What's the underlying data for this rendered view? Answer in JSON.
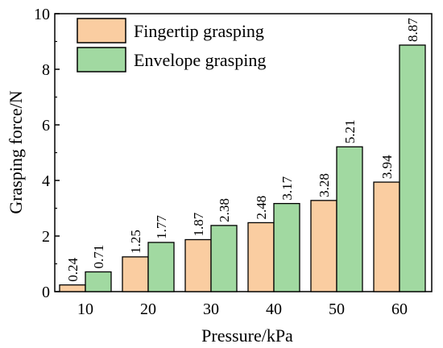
{
  "chart_data": {
    "type": "bar",
    "categories": [
      "10",
      "20",
      "30",
      "40",
      "50",
      "60"
    ],
    "series": [
      {
        "name": "Fingertip grasping",
        "values": [
          0.24,
          1.25,
          1.87,
          2.48,
          3.28,
          3.94
        ],
        "color": "#FACDA1"
      },
      {
        "name": "Envelope grasping",
        "values": [
          0.71,
          1.77,
          2.38,
          3.17,
          5.21,
          8.87
        ],
        "color": "#A1D9A1"
      }
    ],
    "value_labels": [
      [
        "0.24",
        "1.25",
        "1.87",
        "2.48",
        "3.28",
        "3.94"
      ],
      [
        "0.71",
        "1.77",
        "2.38",
        "3.17",
        "5.21",
        "8.87"
      ]
    ],
    "xlabel": "Pressure/kPa",
    "ylabel": "Grasping force/N",
    "ylim": [
      0,
      10
    ],
    "yticks": [
      "0",
      "2",
      "4",
      "6",
      "8",
      "10"
    ],
    "grid": false,
    "legend_position": "top-left"
  }
}
